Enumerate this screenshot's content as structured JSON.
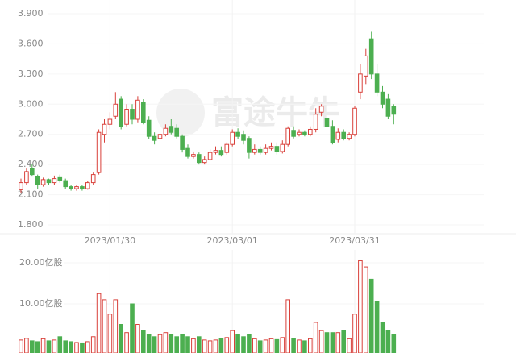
{
  "watermark": "富途牛牛",
  "chart_data": {
    "type": "candlestick",
    "categories": [
      null,
      null,
      null,
      null,
      null,
      null,
      null,
      null,
      null,
      null,
      null,
      null,
      null,
      null,
      null,
      null,
      "2023/01/30",
      null,
      null,
      null,
      null,
      null,
      null,
      null,
      null,
      null,
      null,
      null,
      null,
      null,
      null,
      null,
      null,
      null,
      null,
      null,
      null,
      null,
      "2023/03/01",
      null,
      null,
      null,
      null,
      null,
      null,
      null,
      null,
      null,
      null,
      null,
      null,
      null,
      null,
      null,
      null,
      null,
      null,
      null,
      null,
      null,
      "2023/03/31",
      null,
      null,
      null,
      null,
      null,
      null,
      null
    ],
    "open": [
      2.15,
      2.22,
      2.36,
      2.28,
      2.2,
      2.25,
      2.22,
      2.27,
      2.24,
      2.18,
      2.16,
      2.18,
      2.16,
      2.22,
      2.32,
      2.7,
      2.8,
      2.88,
      3.05,
      2.8,
      2.95,
      2.85,
      3.02,
      2.84,
      2.68,
      2.66,
      2.7,
      2.78,
      2.76,
      2.68,
      2.56,
      2.48,
      2.5,
      2.42,
      2.45,
      2.52,
      2.54,
      2.52,
      2.6,
      2.72,
      2.7,
      2.66,
      2.52,
      2.55,
      2.52,
      2.56,
      2.58,
      2.53,
      2.6,
      2.74,
      2.7,
      2.72,
      2.7,
      2.75,
      2.92,
      2.86,
      2.78,
      2.65,
      2.72,
      2.66,
      2.7,
      3.12,
      3.28,
      3.65,
      3.3,
      3.12,
      3.05,
      2.98
    ],
    "high": [
      2.26,
      2.36,
      2.4,
      2.3,
      2.27,
      2.26,
      2.29,
      2.3,
      2.26,
      2.2,
      2.2,
      2.2,
      2.24,
      2.32,
      2.75,
      2.85,
      2.92,
      3.12,
      3.08,
      3.0,
      3.0,
      3.08,
      3.05,
      2.88,
      2.72,
      2.74,
      2.8,
      2.85,
      2.8,
      2.7,
      2.6,
      2.53,
      2.52,
      2.48,
      2.55,
      2.58,
      2.58,
      2.62,
      2.75,
      2.76,
      2.74,
      2.68,
      2.6,
      2.58,
      2.6,
      2.62,
      2.62,
      2.64,
      2.78,
      2.78,
      2.75,
      2.74,
      2.78,
      2.96,
      3.0,
      2.9,
      2.84,
      2.76,
      2.75,
      2.72,
      2.98,
      3.4,
      3.55,
      3.72,
      3.4,
      3.18,
      3.1,
      3.0
    ],
    "low": [
      2.12,
      2.2,
      2.28,
      2.16,
      2.18,
      2.2,
      2.2,
      2.22,
      2.16,
      2.14,
      2.14,
      2.14,
      2.15,
      2.2,
      2.3,
      2.62,
      2.75,
      2.85,
      2.75,
      2.78,
      2.8,
      2.82,
      2.8,
      2.65,
      2.6,
      2.62,
      2.68,
      2.7,
      2.66,
      2.52,
      2.46,
      2.46,
      2.4,
      2.4,
      2.44,
      2.5,
      2.48,
      2.5,
      2.58,
      2.65,
      2.6,
      2.46,
      2.5,
      2.5,
      2.5,
      2.54,
      2.5,
      2.51,
      2.58,
      2.66,
      2.68,
      2.68,
      2.68,
      2.72,
      2.88,
      2.74,
      2.6,
      2.62,
      2.64,
      2.64,
      2.68,
      3.05,
      3.2,
      3.25,
      3.08,
      2.96,
      2.85,
      2.8
    ],
    "close": [
      2.22,
      2.33,
      2.3,
      2.2,
      2.25,
      2.22,
      2.26,
      2.24,
      2.18,
      2.16,
      2.18,
      2.16,
      2.22,
      2.3,
      2.72,
      2.8,
      2.85,
      3.0,
      2.78,
      2.95,
      2.85,
      3.04,
      2.82,
      2.68,
      2.64,
      2.7,
      2.76,
      2.72,
      2.68,
      2.55,
      2.48,
      2.5,
      2.42,
      2.45,
      2.52,
      2.54,
      2.5,
      2.6,
      2.72,
      2.68,
      2.64,
      2.52,
      2.55,
      2.52,
      2.56,
      2.58,
      2.53,
      2.6,
      2.76,
      2.68,
      2.72,
      2.7,
      2.75,
      2.9,
      2.98,
      2.78,
      2.62,
      2.72,
      2.66,
      2.7,
      2.96,
      3.3,
      3.48,
      3.3,
      3.12,
      3.0,
      2.88,
      2.9
    ],
    "ylim": [
      1.8,
      3.9
    ],
    "yticks": [
      {
        "value": 1.8,
        "label": "1.800"
      },
      {
        "value": 2.1,
        "label": "2.100"
      },
      {
        "value": 2.4,
        "label": "2.400"
      },
      {
        "value": 2.7,
        "label": "2.700"
      },
      {
        "value": 3.0,
        "label": "3.000"
      },
      {
        "value": 3.3,
        "label": "3.300"
      },
      {
        "value": 3.6,
        "label": "3.600"
      },
      {
        "value": 3.9,
        "label": "3.900"
      }
    ],
    "up_color": "#d9403a",
    "down_color": "#4caf50",
    "volume": {
      "values": [
        1.2,
        1.6,
        1.0,
        0.8,
        1.5,
        1.0,
        1.2,
        2.0,
        1.0,
        0.8,
        0.6,
        0.5,
        0.8,
        2.0,
        12.5,
        11.0,
        7.5,
        11.0,
        5.0,
        3.0,
        10.0,
        5.0,
        3.5,
        2.5,
        2.0,
        2.5,
        3.0,
        2.5,
        2.0,
        2.5,
        2.0,
        1.5,
        2.0,
        1.2,
        1.0,
        1.2,
        1.5,
        1.8,
        3.5,
        2.5,
        2.0,
        2.5,
        1.5,
        1.0,
        1.2,
        1.5,
        1.3,
        1.8,
        11.0,
        1.5,
        1.2,
        1.0,
        1.5,
        5.5,
        3.5,
        3.0,
        3.0,
        3.0,
        3.5,
        1.5,
        7.5,
        20.5,
        19.0,
        16.0,
        10.5,
        5.5,
        3.5,
        2.5
      ],
      "ylim": [
        0,
        20
      ],
      "yticks": [
        {
          "value": 10,
          "label": "10.00亿股"
        },
        {
          "value": 20,
          "label": "20.00亿股"
        }
      ]
    }
  }
}
